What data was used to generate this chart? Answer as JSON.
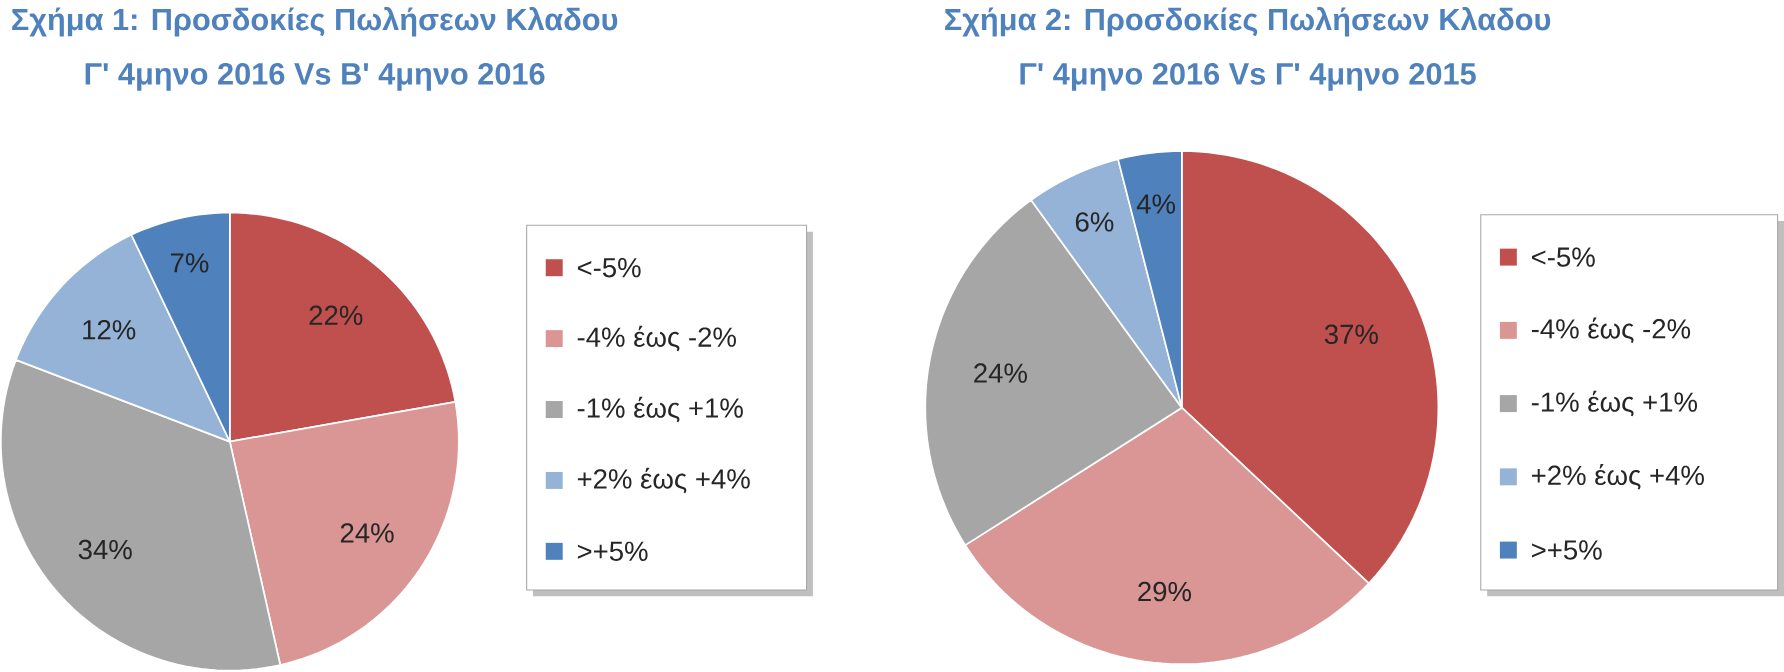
{
  "chart_data": [
    {
      "type": "pie",
      "title": "Σχήμα 1: Προσδοκίες Πωλήσεων  Κλαδου",
      "subtitle": "Γ' 4μηνο 2016 Vs Β' 4μηνο 2016",
      "categories": [
        "<-5%",
        "-4% έως -2%",
        "-1% έως +1%",
        "+2% έως +4%",
        ">+5%"
      ],
      "values": [
        22,
        24,
        34,
        12,
        7
      ],
      "value_labels": [
        "22%",
        "24%",
        "34%",
        "12%",
        "7%"
      ],
      "colors": [
        "#c0504d",
        "#d99694",
        "#a6a6a6",
        "#95b3d7",
        "#4f81bd"
      ],
      "legend": "right"
    },
    {
      "type": "pie",
      "title": "Σχήμα 2: Προσδοκίες Πωλήσεων  Κλαδου",
      "subtitle": "Γ' 4μηνο 2016 Vs Γ' 4μηνο 2015",
      "categories": [
        "<-5%",
        "-4% έως -2%",
        "-1% έως +1%",
        "+2% έως +4%",
        ">+5%"
      ],
      "values": [
        37,
        29,
        24,
        6,
        4
      ],
      "value_labels": [
        "37%",
        "29%",
        "24%",
        "6%",
        "4%"
      ],
      "colors": [
        "#c0504d",
        "#d99694",
        "#a6a6a6",
        "#95b3d7",
        "#4f81bd"
      ],
      "legend": "right"
    }
  ]
}
